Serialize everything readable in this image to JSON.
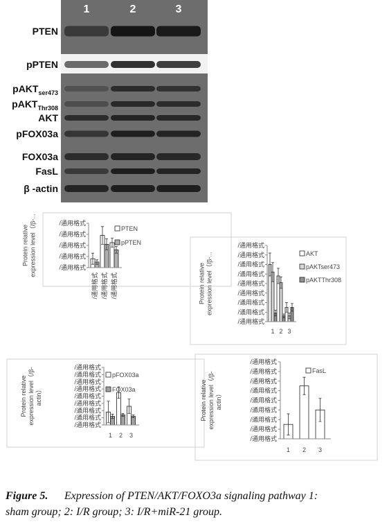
{
  "blot": {
    "lanes": [
      "1",
      "2",
      "3"
    ],
    "rows": [
      {
        "label": "PTEN"
      },
      {
        "label": "pPTEN"
      },
      {
        "label": "pAKT",
        "sub": "ser473"
      },
      {
        "label": "pAKT",
        "sub": "Thr308"
      },
      {
        "label": "AKT"
      },
      {
        "label": "pFOX03a"
      },
      {
        "label": "FOX03a"
      },
      {
        "label": "FasL"
      },
      {
        "label": "β -actin"
      }
    ]
  },
  "chart_data": [
    {
      "type": "bar",
      "ylabel": [
        "Protein relative",
        "expression level（/β-..."
      ],
      "categories": [
        "/通用格式",
        "/通用格式",
        "/通用格式"
      ],
      "series": [
        {
          "name": "PTEN",
          "color": "#ffffff",
          "values": [
            0.8,
            2.9,
            2.25
          ],
          "errors": [
            0.5,
            0.8,
            0.4
          ]
        },
        {
          "name": "pPTEN",
          "color": "#b0b0b0",
          "values": [
            0.5,
            2.1,
            1.6
          ],
          "errors": [
            0.2,
            0.5,
            0.3
          ]
        }
      ],
      "ylim": [
        0,
        4
      ],
      "yticks": [
        {
          "value": 0,
          "label": "/通用格式"
        },
        {
          "value": 1,
          "label": "/通用格式"
        },
        {
          "value": 2,
          "label": "/通用格式"
        },
        {
          "value": 3,
          "label": "/通用格式"
        },
        {
          "value": 4,
          "label": "/通用格式"
        }
      ]
    },
    {
      "type": "bar",
      "ylabel": [
        "Protein relative",
        "expression level（/β-..."
      ],
      "categories": [
        "1",
        "2",
        "3"
      ],
      "series": [
        {
          "name": "AKT",
          "color": "#ffffff",
          "values": [
            6.0,
            4.8,
            1.5
          ],
          "errors": [
            1.2,
            0.8,
            0.5
          ]
        },
        {
          "name": "pAKTser473",
          "color": "#d8d8d8",
          "values": [
            5.2,
            4.1,
            0.6
          ],
          "errors": [
            1.0,
            0.6,
            0.3
          ]
        },
        {
          "name": "pAKTThr308",
          "color": "#909090",
          "values": [
            0.9,
            0.6,
            1.5
          ],
          "errors": [
            0.3,
            0.2,
            0.4
          ]
        }
      ],
      "ylim": [
        0,
        8
      ],
      "yticks": [
        {
          "value": 0,
          "label": "/通用格式"
        },
        {
          "value": 1,
          "label": "/通用格式"
        },
        {
          "value": 2,
          "label": "/通用格式"
        },
        {
          "value": 3,
          "label": "/通用格式"
        },
        {
          "value": 4,
          "label": "/通用格式"
        },
        {
          "value": 5,
          "label": "/通用格式"
        },
        {
          "value": 6,
          "label": "/通用格式"
        },
        {
          "value": 7,
          "label": "/通用格式"
        },
        {
          "value": 8,
          "label": "/通用格式"
        }
      ]
    },
    {
      "type": "bar",
      "ylabel": [
        "Protein relative",
        "expression level（/β-",
        "actin）"
      ],
      "categories": [
        "1",
        "2",
        "3"
      ],
      "series": [
        {
          "name": "pFOX03a",
          "color": "#ffffff",
          "values": [
            1.8,
            4.5,
            2.6
          ],
          "errors": [
            1.5,
            0.8,
            1.0
          ]
        },
        {
          "name": "FOX03a",
          "color": "#a0a0a0",
          "values": [
            1.2,
            1.4,
            1.2
          ],
          "errors": [
            0.3,
            0.2,
            0.2
          ]
        }
      ],
      "ylim": [
        0,
        8
      ],
      "yticks": [
        {
          "value": 0,
          "label": "/通用格式"
        },
        {
          "value": 1,
          "label": "/通用格式"
        },
        {
          "value": 2,
          "label": "/通用格式"
        },
        {
          "value": 3,
          "label": "/通用格式"
        },
        {
          "value": 4,
          "label": "/通用格式"
        },
        {
          "value": 5,
          "label": "/通用格式"
        },
        {
          "value": 6,
          "label": "/通用格式"
        },
        {
          "value": 7,
          "label": "/通用格式"
        },
        {
          "value": 8,
          "label": "/通用格式"
        }
      ]
    },
    {
      "type": "bar",
      "ylabel": [
        "Protein relative",
        "expression level（/β-",
        "actin）"
      ],
      "categories": [
        "1",
        "2",
        "3"
      ],
      "series": [
        {
          "name": "FasL",
          "color": "#ffffff",
          "values": [
            1.5,
            5.5,
            3.0
          ],
          "errors": [
            1.1,
            0.9,
            1.2
          ]
        }
      ],
      "ylim": [
        0,
        8
      ],
      "yticks": [
        {
          "value": 0,
          "label": "/通用格式"
        },
        {
          "value": 1,
          "label": "/通用格式"
        },
        {
          "value": 2,
          "label": "/通用格式"
        },
        {
          "value": 3,
          "label": "/通用格式"
        },
        {
          "value": 4,
          "label": "/通用格式"
        },
        {
          "value": 5,
          "label": "/通用格式"
        },
        {
          "value": 6,
          "label": "/通用格式"
        },
        {
          "value": 7,
          "label": "/通用格式"
        },
        {
          "value": 8,
          "label": "/通用格式"
        }
      ]
    }
  ],
  "caption": {
    "label": "Figure 5.",
    "text": "Expression of PTEN/AKT/FOXO3a signaling pathway 1:",
    "text2": "sham group; 2: I/R group; 3: I/R+miR-21 group."
  }
}
